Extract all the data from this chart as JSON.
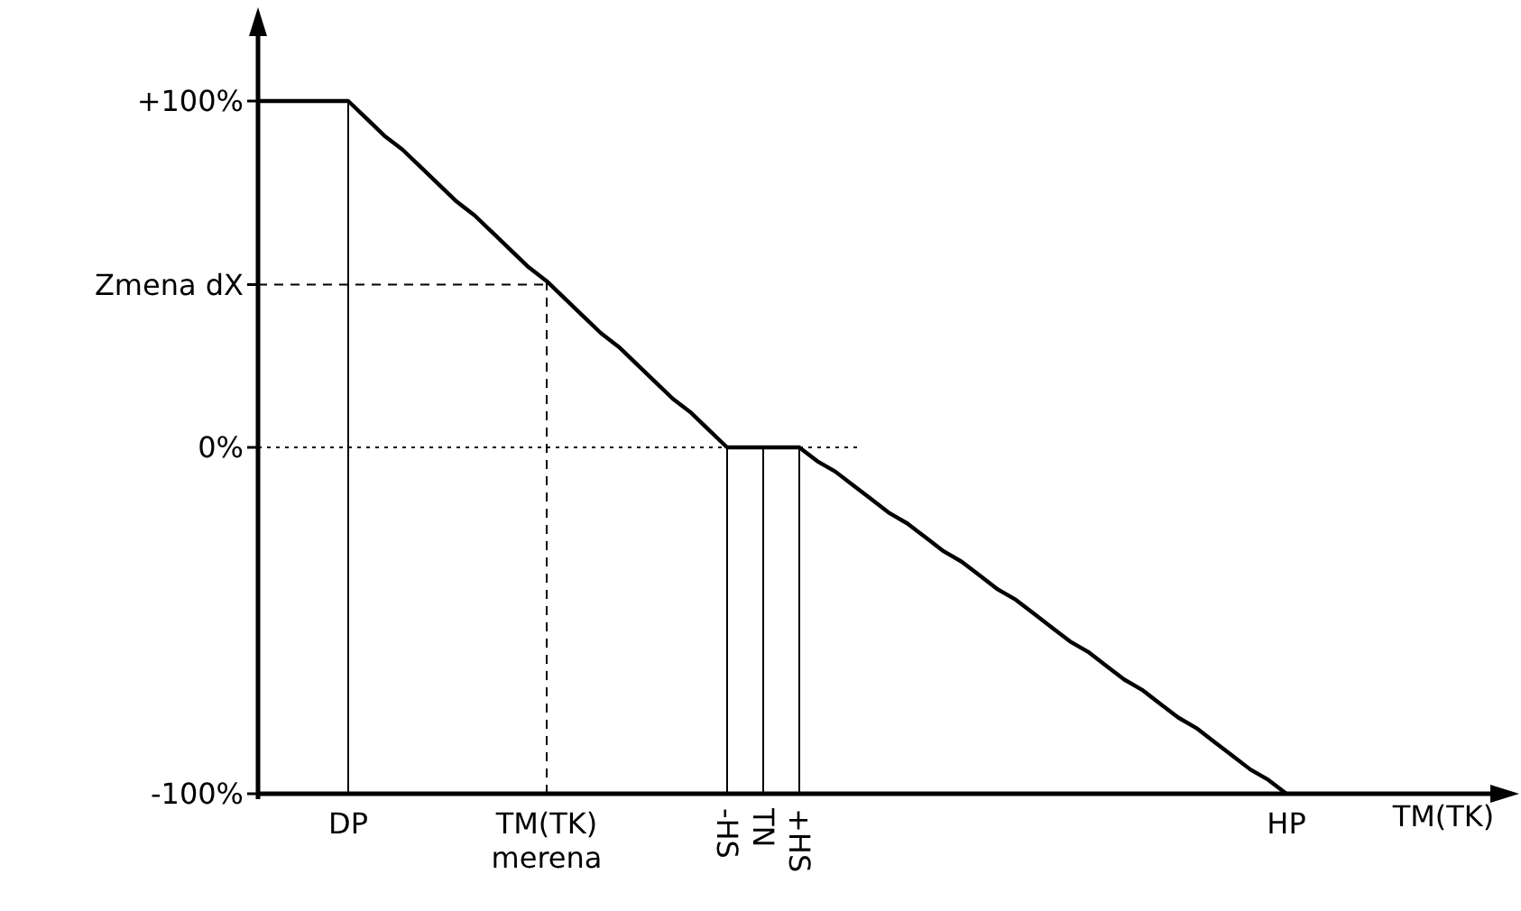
{
  "chart_data": {
    "type": "line",
    "xlabel": "TM(TK)",
    "ylim": [
      -100,
      100
    ],
    "categories": [
      null,
      null,
      null,
      null,
      null,
      "DP",
      null,
      null,
      null,
      null,
      null,
      null,
      null,
      null,
      null,
      null,
      "TM(TK)\nmerena",
      null,
      null,
      null,
      null,
      null,
      null,
      null,
      null,
      null,
      "-HS",
      null,
      "TN",
      null,
      "+HS",
      null,
      null,
      null,
      null,
      null,
      null,
      null,
      null,
      null,
      null,
      null,
      null,
      null,
      null,
      null,
      null,
      null,
      null,
      null,
      null,
      null,
      null,
      null,
      null,
      null,
      null,
      "HP"
    ],
    "yticks": [
      {
        "value": 100,
        "label": "+100%"
      },
      {
        "value": 47,
        "label": "Zmena dX"
      },
      {
        "value": 0,
        "label": "0%"
      },
      {
        "value": -100,
        "label": "-100%"
      }
    ],
    "series": [
      {
        "color": "#000000",
        "values": [
          100,
          100,
          100,
          100,
          100,
          100,
          95,
          90,
          86,
          81,
          76,
          71,
          67,
          62,
          57,
          52,
          48,
          43,
          38,
          33,
          29,
          24,
          19,
          14,
          10,
          5,
          0,
          0,
          0,
          0,
          0,
          -4,
          -7,
          -11,
          -15,
          -19,
          -22,
          -26,
          -30,
          -33,
          -37,
          -41,
          -44,
          -48,
          -52,
          -56,
          -59,
          -63,
          -67,
          -70,
          -74,
          -78,
          -81,
          -85,
          -89,
          -93,
          -96,
          -100
        ]
      }
    ],
    "ref_lines": [
      {
        "axis": "x",
        "value": "DP",
        "line_style": "solid"
      },
      {
        "axis": "x",
        "value": "TM(TK)\nmerena",
        "line_style": "dashed"
      },
      {
        "axis": "x",
        "value": "-HS",
        "line_style": "solid"
      },
      {
        "axis": "x",
        "value": "TN",
        "line_style": "solid"
      },
      {
        "axis": "x",
        "value": "+HS",
        "line_style": "solid"
      },
      {
        "axis": "y",
        "value": 47,
        "line_style": "dashed"
      },
      {
        "axis": "y",
        "value": 0,
        "line_style": "dotted"
      }
    ],
    "marker": "none",
    "line_style": "solid"
  }
}
